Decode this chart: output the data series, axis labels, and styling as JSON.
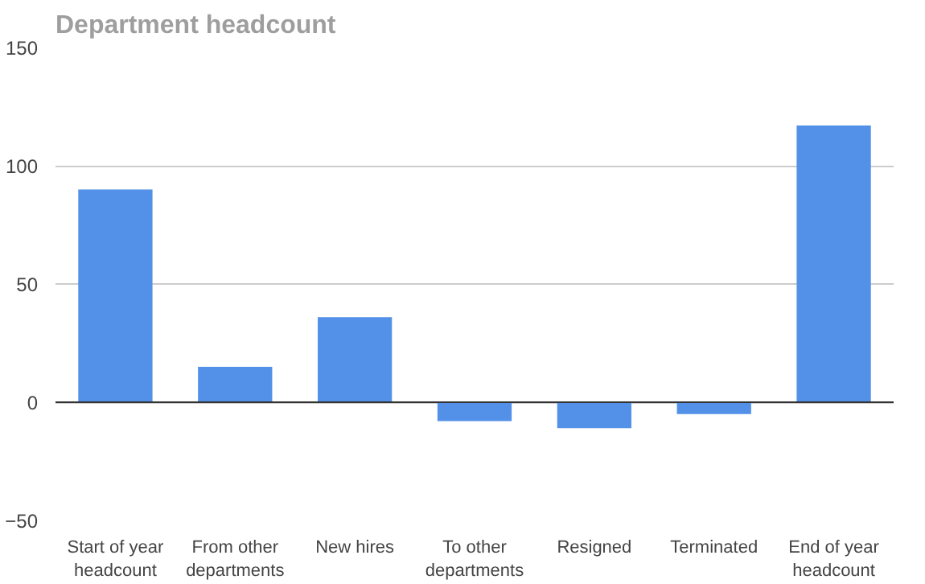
{
  "chart_data": {
    "type": "bar",
    "title": "Department headcount",
    "categories": [
      "Start of year headcount",
      "From other departments",
      "New hires",
      "To other departments",
      "Resigned",
      "Terminated",
      "End of year headcount"
    ],
    "values": [
      90,
      15,
      36,
      -8,
      -11,
      -5,
      117
    ],
    "color": "#5391e8",
    "ylim": [
      -50,
      150
    ],
    "yticks": [
      -50,
      0,
      50,
      100,
      150
    ],
    "grid": "y"
  }
}
